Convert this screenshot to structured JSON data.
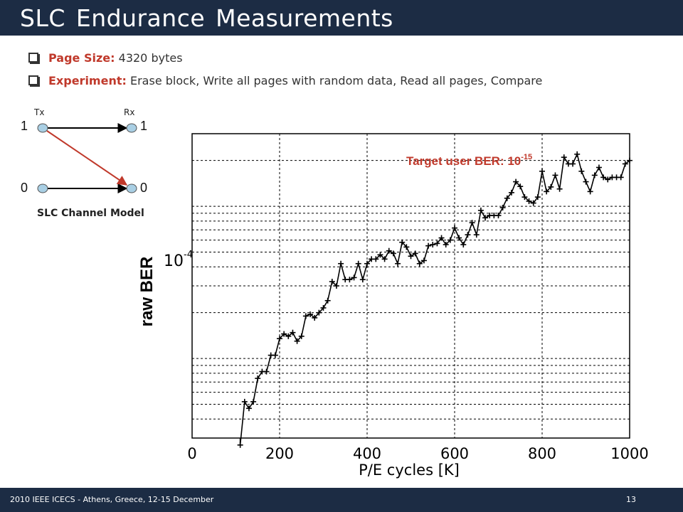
{
  "slide": {
    "title": "SLC  Endurance  Measurements",
    "bullets": [
      {
        "key": "Page Size:",
        "text": "4320 bytes"
      },
      {
        "key": "Experiment:",
        "text": "Erase block,  Write all pages with random data, Read all pages,  Compare"
      }
    ],
    "footer": "2010 IEEE ICECS - Athens, Greece, 12-15 December",
    "page_number": "13"
  },
  "channel_model": {
    "tx_label": "Tx",
    "rx_label": "Rx",
    "symbols": [
      "1",
      "0"
    ],
    "caption": "SLC Channel Model",
    "arrow_color": "#000000",
    "crossover_color": "#c0392b",
    "node_color": "#a9cfe4"
  },
  "chart_data": {
    "type": "line",
    "marker": "+",
    "xlabel": "P/E cycles [K]",
    "ylabel": "raw BER",
    "xlim": [
      0,
      1000
    ],
    "xticks": [
      "0",
      "200",
      "400",
      "600",
      "800",
      "1000"
    ],
    "y_scale": "log",
    "ylim": [
      3e-06,
      0.0003
    ],
    "ytick_label_base": "10",
    "ytick_label_exp": "-4",
    "grid": true,
    "annotation": {
      "text": "Target user BER: 10",
      "exponent": "-15",
      "color": "#c0392b"
    },
    "series": [
      {
        "color": "#000000",
        "x": [
          110,
          120,
          130,
          140,
          150,
          160,
          170,
          180,
          190,
          200,
          210,
          220,
          230,
          240,
          250,
          260,
          270,
          280,
          290,
          300,
          310,
          320,
          330,
          340,
          350,
          360,
          370,
          380,
          390,
          400,
          410,
          420,
          430,
          440,
          450,
          460,
          470,
          480,
          490,
          500,
          510,
          520,
          530,
          540,
          550,
          560,
          570,
          580,
          590,
          600,
          610,
          620,
          630,
          640,
          650,
          660,
          670,
          680,
          690,
          700,
          710,
          720,
          730,
          740,
          750,
          760,
          770,
          780,
          790,
          800,
          810,
          820,
          830,
          840,
          850,
          860,
          870,
          880,
          890,
          900,
          910,
          920,
          930,
          940,
          950,
          960,
          970,
          980,
          990,
          1000
        ],
        "y": [
          2.7e-06,
          5.2e-06,
          4.7e-06,
          5.2e-06,
          7.4e-06,
          8.2e-06,
          8.2e-06,
          1.05e-05,
          1.05e-05,
          1.35e-05,
          1.45e-05,
          1.4e-05,
          1.48e-05,
          1.3e-05,
          1.4e-05,
          1.9e-05,
          1.95e-05,
          1.85e-05,
          2e-05,
          2.15e-05,
          2.4e-05,
          3.2e-05,
          3e-05,
          4.2e-05,
          3.3e-05,
          3.3e-05,
          3.4e-05,
          4.2e-05,
          3.3e-05,
          4.2e-05,
          4.5e-05,
          4.5e-05,
          4.8e-05,
          4.5e-05,
          5.1e-05,
          4.9e-05,
          4.2e-05,
          5.8e-05,
          5.4e-05,
          4.7e-05,
          4.9e-05,
          4.2e-05,
          4.4e-05,
          5.5e-05,
          5.6e-05,
          5.7e-05,
          6.2e-05,
          5.6e-05,
          6e-05,
          7.2e-05,
          6.2e-05,
          5.6e-05,
          6.5e-05,
          7.8e-05,
          6.5e-05,
          9.4e-05,
          8.4e-05,
          8.7e-05,
          8.7e-05,
          8.7e-05,
          9.8e-05,
          0.000113,
          0.000123,
          0.000145,
          0.000135,
          0.000115,
          0.000108,
          0.000105,
          0.000115,
          0.00017,
          0.000125,
          0.000134,
          0.00016,
          0.00013,
          0.00021,
          0.00019,
          0.00019,
          0.00022,
          0.00017,
          0.000145,
          0.000125,
          0.00016,
          0.00018,
          0.000155,
          0.00015,
          0.000155,
          0.000155,
          0.000155,
          0.00019,
          0.0002
        ]
      }
    ]
  }
}
